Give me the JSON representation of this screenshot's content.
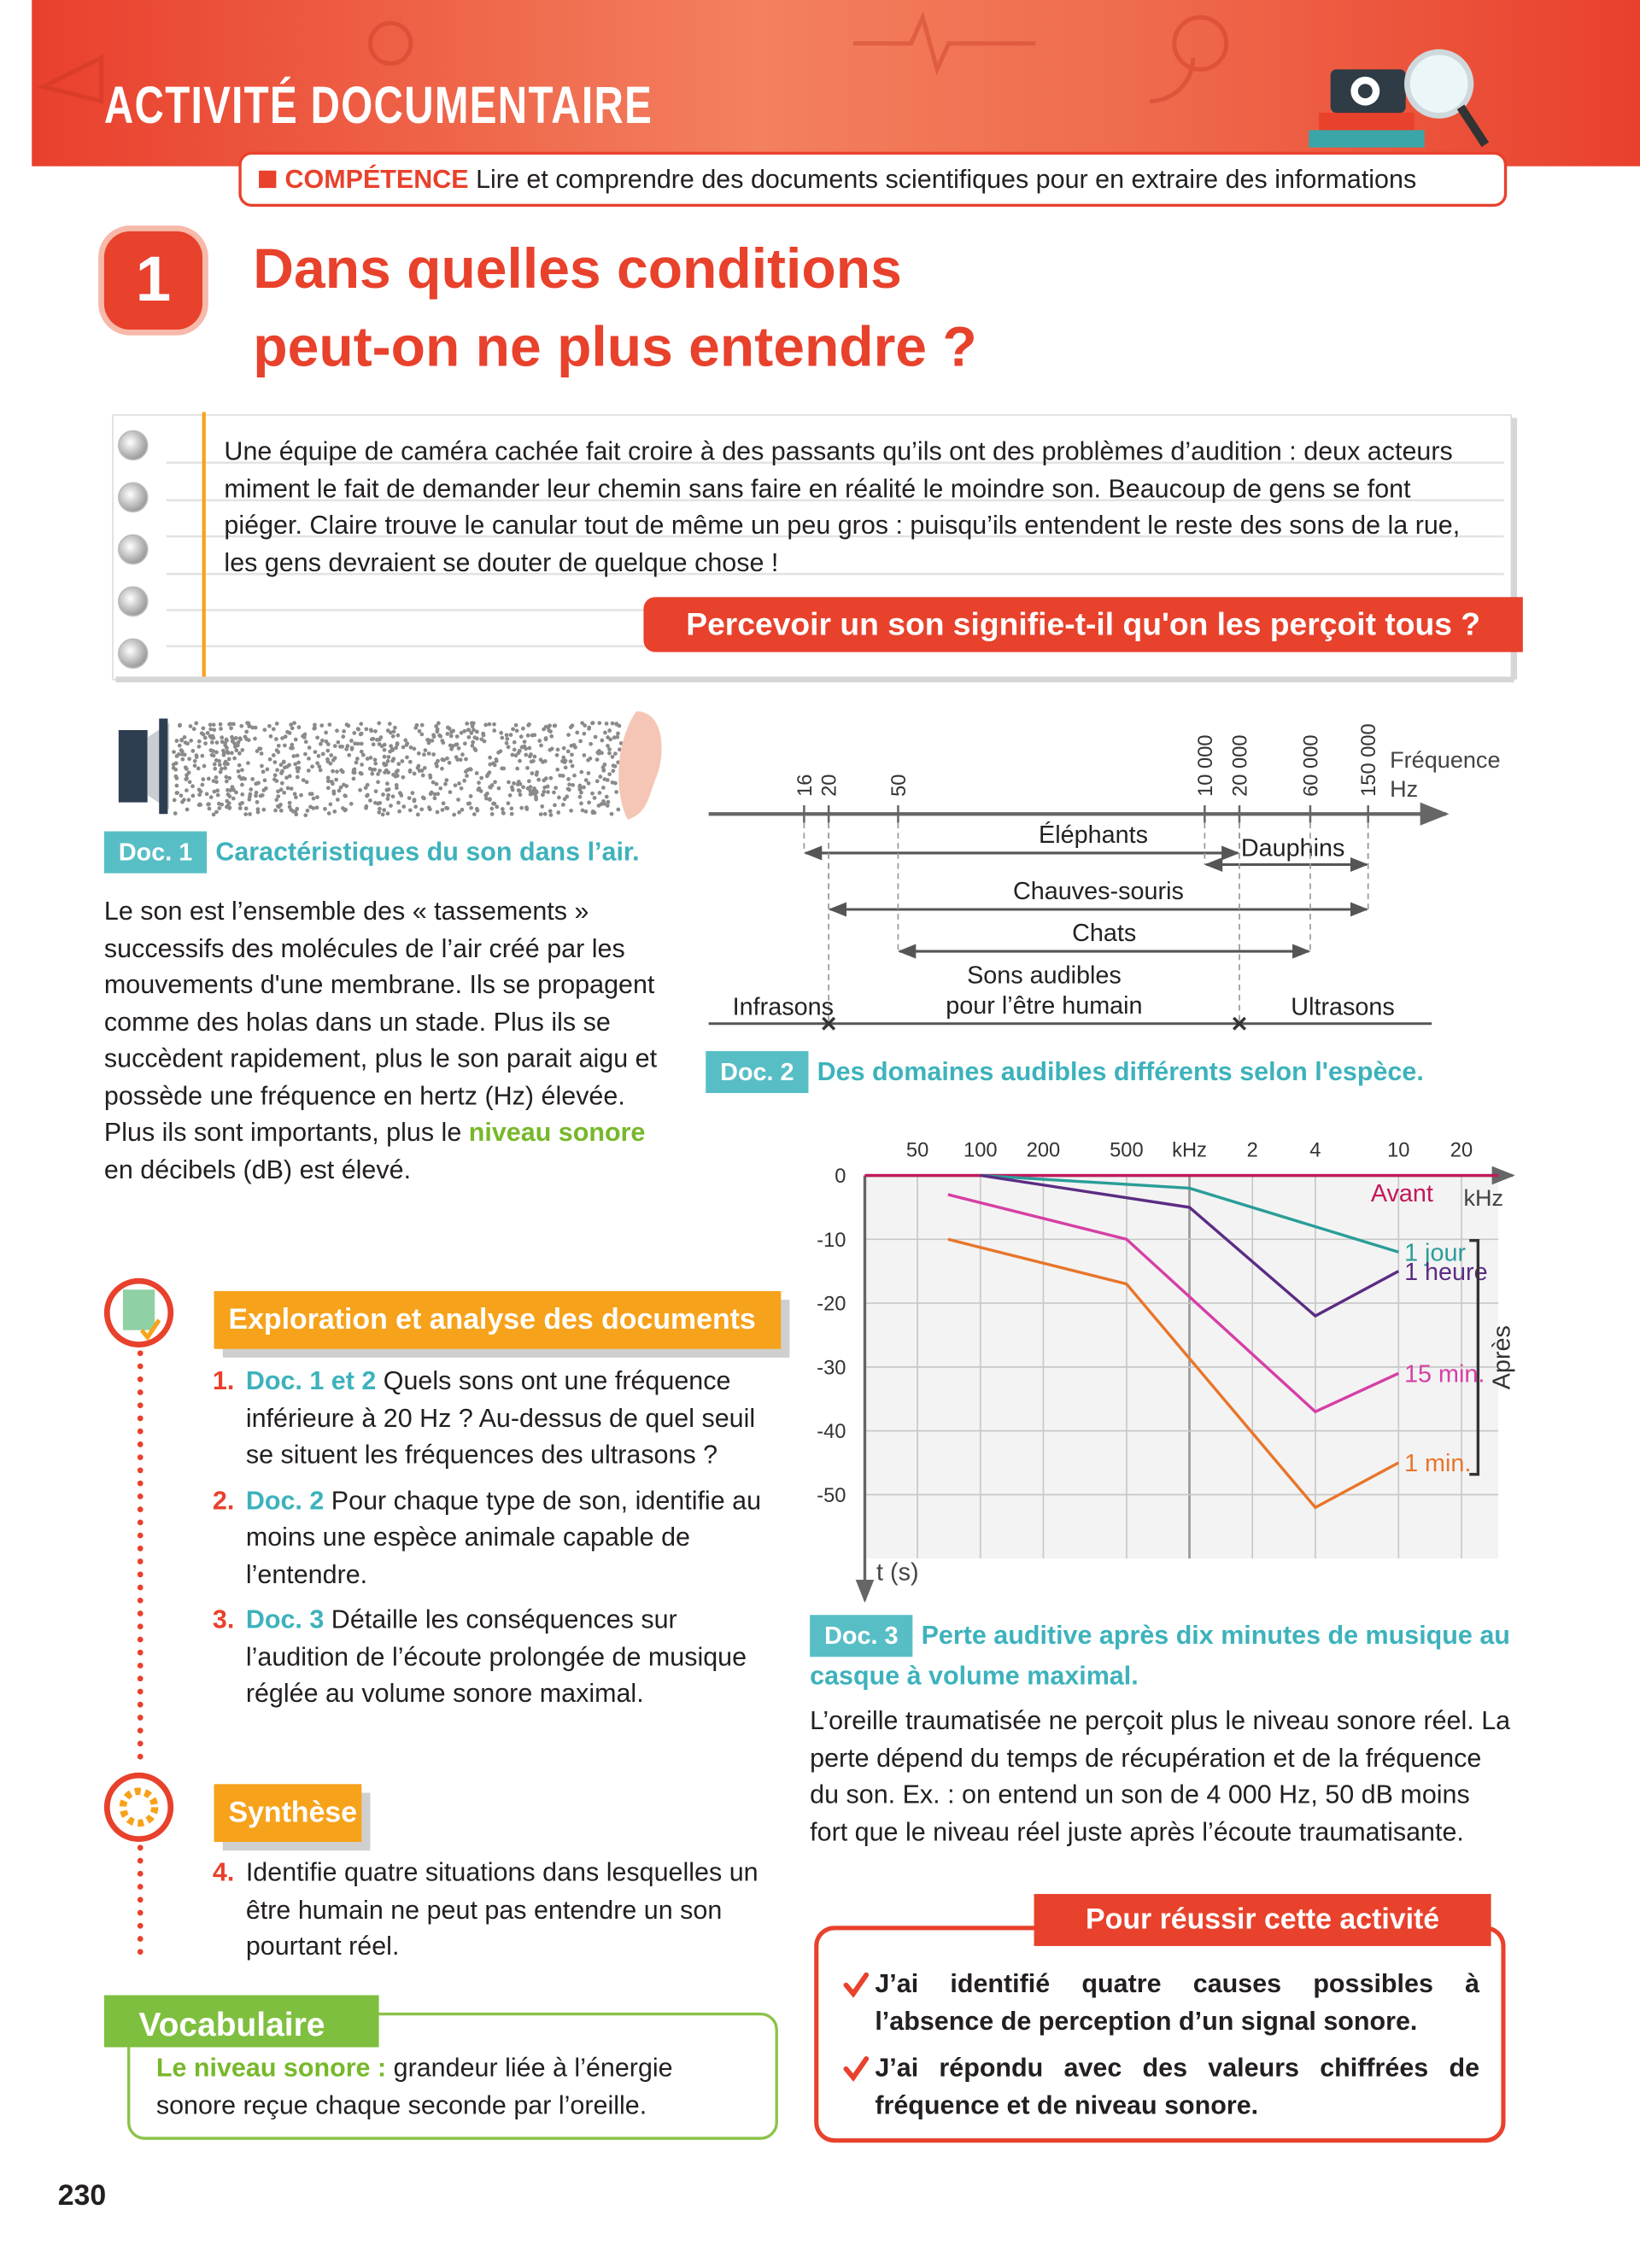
{
  "header": {
    "title": "ACTIVITÉ DOCUMENTAIRE"
  },
  "competence": {
    "label": "COMPÉTENCE",
    "text": "Lire et comprendre des documents scientifiques pour en extraire des informations"
  },
  "activity": {
    "number": "1",
    "title_lines": [
      "Dans quelles conditions",
      "peut-on ne plus entendre ?"
    ]
  },
  "intro": {
    "text": "Une équipe de caméra cachée fait croire à des passants qu’ils ont des problèmes d’audition : deux acteurs miment le fait de demander leur chemin sans faire en réalité le moindre son. Beaucoup de gens se font piéger. Claire trouve le canular tout de même un peu gros : puisqu’ils entendent le reste des sons de la rue, les gens devraient se douter de quelque chose !",
    "question": "Percevoir un son signifie-t-il qu'on les perçoit tous ?"
  },
  "doc1": {
    "label": "Doc. 1",
    "title": "Caractéristiques du son dans l’air.",
    "text": [
      "Le son est l’ensemble des « tassements » successifs des molécules de l’air créé par les mouvements d'une membrane. Ils se propagent comme des holas  dans un stade. Plus ils se succèdent rapidement, plus le son parait aigu et possède une fréquence en hertz (Hz) élevée. Plus ils sont importants, plus le ",
      "niveau sonore",
      " en décibels (dB) est élevé."
    ]
  },
  "doc2": {
    "label": "Doc. 2",
    "title": "Des domaines audibles différents selon l'espèce.",
    "axis_label": "Fréquence",
    "axis_unit": "Hz",
    "ticks": [
      16,
      20,
      50,
      {
        "value": 10000,
        "label": "10 000"
      },
      {
        "value": 20000,
        "label": "20 000"
      },
      {
        "value": 60000,
        "label": "60 000"
      },
      {
        "value": 150000,
        "label": "150 000"
      }
    ],
    "ranges": [
      {
        "name": "Éléphants",
        "from": 16,
        "to": 20000
      },
      {
        "name": "Dauphins",
        "from": 10000,
        "to": 150000
      },
      {
        "name": "Chauves-souris",
        "from": 20,
        "to": 150000
      },
      {
        "name": "Chats",
        "from": 50,
        "to": 60000
      }
    ],
    "human": {
      "from": 20,
      "to": 20000,
      "infra": "Infrasons",
      "audible": [
        "Sons audibles",
        "pour l’être humain"
      ],
      "ultra": "Ultrasons"
    }
  },
  "chart_data": {
    "type": "line",
    "x_label": "kHz",
    "y_label": "t (s)",
    "log_x": true,
    "grid": true,
    "xlim": [
      28,
      30000
    ],
    "xticks": [
      50,
      100,
      200,
      500,
      {
        "value": 1000,
        "label": "kHz"
      },
      {
        "value": 2000,
        "label": "2"
      },
      {
        "value": 4000,
        "label": "4"
      },
      {
        "value": 10000,
        "label": "10"
      },
      {
        "value": 20000,
        "label": "20"
      }
    ],
    "ylim": [
      -60,
      0
    ],
    "yticks": [
      0,
      -10,
      -20,
      -30,
      -40,
      -50
    ],
    "series": [
      {
        "name": "Avant",
        "color": "#c2185b",
        "x": [
          28,
          30000
        ],
        "values": [
          0,
          0
        ]
      },
      {
        "name": "1 jour",
        "color": "#2a9d98",
        "x": [
          100,
          1000,
          10000
        ],
        "values": [
          0,
          -2,
          -12
        ]
      },
      {
        "name": "1 heure",
        "color": "#5b2c83",
        "x": [
          100,
          1000,
          4000,
          10000
        ],
        "values": [
          0,
          -5,
          -22,
          -15
        ]
      },
      {
        "name": "15 min.",
        "color": "#d63fa6",
        "x": [
          70,
          500,
          4000,
          10000
        ],
        "values": [
          -3,
          -10,
          -37,
          -31
        ]
      },
      {
        "name": "1 min.",
        "color": "#e8752a",
        "x": [
          70,
          500,
          4000,
          10000
        ],
        "values": [
          -10,
          -17,
          -52,
          -45
        ]
      }
    ],
    "annotation": "Après"
  },
  "doc3": {
    "label": "Doc. 3",
    "title": "Perte auditive après dix minutes de musique au casque à volume maximal.",
    "text": "L’oreille traumatisée ne perçoit plus le niveau sonore réel. La perte dépend du temps de récupération et de la fréquence du son. Ex. : on entend un son de 4 000 Hz, 50 dB moins fort que le niveau réel juste après l’écoute traumatisante."
  },
  "exploration": {
    "title": "Exploration et analyse des documents",
    "questions": [
      {
        "number": "1.",
        "ref": "Doc. 1 et 2",
        "text": "Quels sons ont une fréquence inférieure à 20 Hz ? Au-dessus de quel seuil se situent les fréquences des ultrasons ?"
      },
      {
        "number": "2.",
        "ref": "Doc. 2",
        "text": "Pour chaque type de son, identifie au moins une espèce animale capable de l’entendre."
      },
      {
        "number": "3.",
        "ref": "Doc. 3",
        "text": "Détaille les conséquences sur l’audition de l’écoute prolongée de musique réglée au volume sonore maximal."
      }
    ]
  },
  "synthese": {
    "title": "Synthèse",
    "questions": [
      {
        "number": "4.",
        "text": "Identifie quatre situations dans lesquelles un être humain ne peut pas entendre un son pourtant réel."
      }
    ]
  },
  "vocabulaire": {
    "title": "Vocabulaire",
    "term": "Le niveau sonore :",
    "definition": "grandeur liée à l’énergie sonore reçue chaque seconde par l’oreille."
  },
  "reussir": {
    "title": "Pour réussir cette activité",
    "items": [
      "J’ai identifié quatre causes possibles à l’absence de perception d’un signal sonore.",
      "J’ai répondu avec des valeurs chiffrées de fréquence et de niveau sonore."
    ]
  },
  "page_number": "230"
}
